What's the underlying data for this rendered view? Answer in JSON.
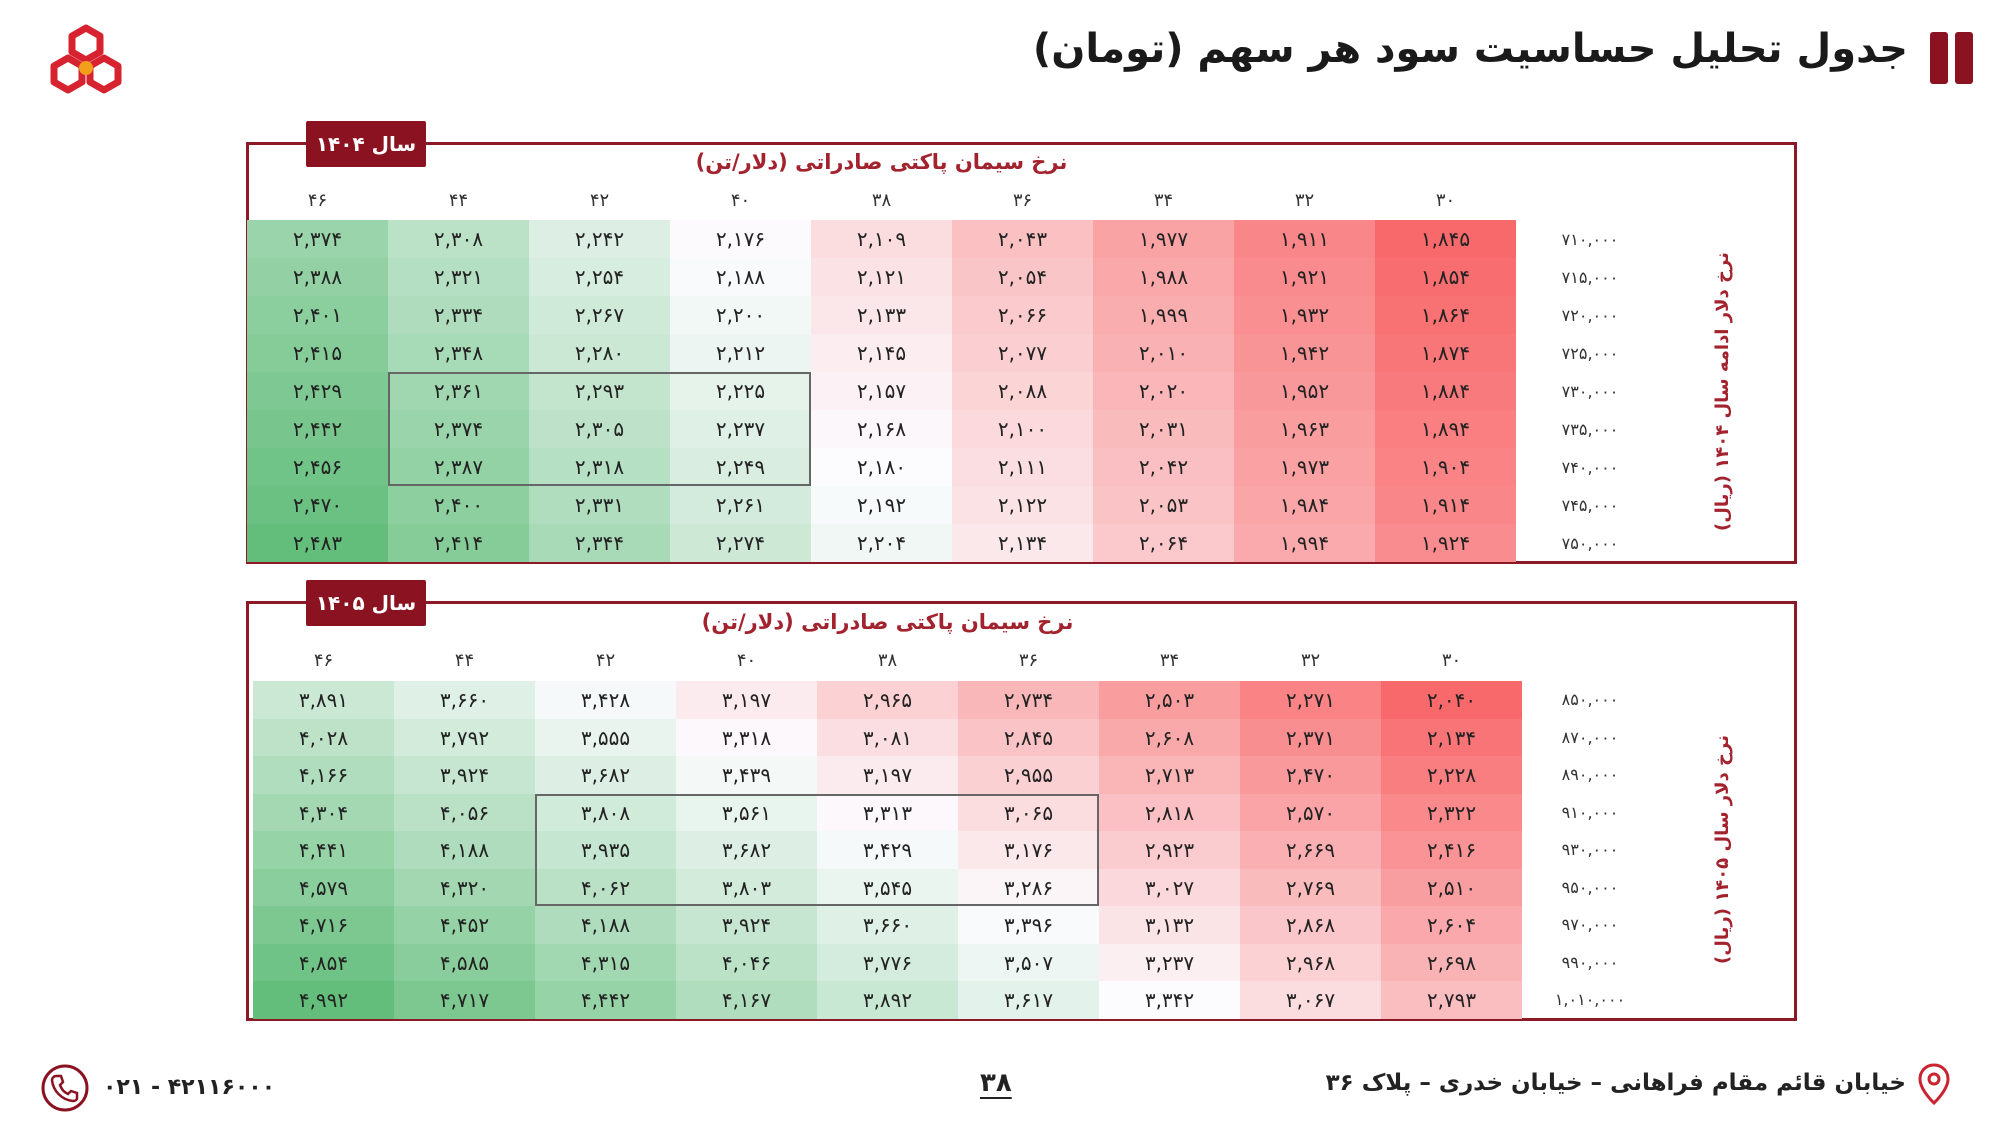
{
  "header": {
    "title": "جدول تحلیل حساسیت سود هر سهم (تومان)"
  },
  "tables": [
    {
      "year_tab": "سال ۱۴۰۴",
      "column_header": "نرخ سیمان پاکتی صادراتی (دلار/تن)",
      "side_label": "نرخ دلار ادامه سال ۱۴۰۴ (ریال)",
      "columns": [
        "۳۰",
        "۳۲",
        "۳۴",
        "۳۶",
        "۳۸",
        "۴۰",
        "۴۲",
        "۴۴",
        "۴۶"
      ],
      "rows": [
        {
          "label": "۷۱۰,۰۰۰",
          "values": [
            "۱,۸۴۵",
            "۱,۹۱۱",
            "۱,۹۷۷",
            "۲,۰۴۳",
            "۲,۱۰۹",
            "۲,۱۷۶",
            "۲,۲۴۲",
            "۲,۳۰۸",
            "۲,۳۷۴"
          ]
        },
        {
          "label": "۷۱۵,۰۰۰",
          "values": [
            "۱,۸۵۴",
            "۱,۹۲۱",
            "۱,۹۸۸",
            "۲,۰۵۴",
            "۲,۱۲۱",
            "۲,۱۸۸",
            "۲,۲۵۴",
            "۲,۳۲۱",
            "۲,۳۸۸"
          ]
        },
        {
          "label": "۷۲۰,۰۰۰",
          "values": [
            "۱,۸۶۴",
            "۱,۹۳۲",
            "۱,۹۹۹",
            "۲,۰۶۶",
            "۲,۱۳۳",
            "۲,۲۰۰",
            "۲,۲۶۷",
            "۲,۳۳۴",
            "۲,۴۰۱"
          ]
        },
        {
          "label": "۷۲۵,۰۰۰",
          "values": [
            "۱,۸۷۴",
            "۱,۹۴۲",
            "۲,۰۱۰",
            "۲,۰۷۷",
            "۲,۱۴۵",
            "۲,۲۱۲",
            "۲,۲۸۰",
            "۲,۳۴۸",
            "۲,۴۱۵"
          ]
        },
        {
          "label": "۷۳۰,۰۰۰",
          "values": [
            "۱,۸۸۴",
            "۱,۹۵۲",
            "۲,۰۲۰",
            "۲,۰۸۸",
            "۲,۱۵۷",
            "۲,۲۲۵",
            "۲,۲۹۳",
            "۲,۳۶۱",
            "۲,۴۲۹"
          ]
        },
        {
          "label": "۷۳۵,۰۰۰",
          "values": [
            "۱,۸۹۴",
            "۱,۹۶۳",
            "۲,۰۳۱",
            "۲,۱۰۰",
            "۲,۱۶۸",
            "۲,۲۳۷",
            "۲,۳۰۵",
            "۲,۳۷۴",
            "۲,۴۴۲"
          ]
        },
        {
          "label": "۷۴۰,۰۰۰",
          "values": [
            "۱,۹۰۴",
            "۱,۹۷۳",
            "۲,۰۴۲",
            "۲,۱۱۱",
            "۲,۱۸۰",
            "۲,۲۴۹",
            "۲,۳۱۸",
            "۲,۳۸۷",
            "۲,۴۵۶"
          ]
        },
        {
          "label": "۷۴۵,۰۰۰",
          "values": [
            "۱,۹۱۴",
            "۱,۹۸۴",
            "۲,۰۵۳",
            "۲,۱۲۲",
            "۲,۱۹۲",
            "۲,۲۶۱",
            "۲,۳۳۱",
            "۲,۴۰۰",
            "۲,۴۷۰"
          ]
        },
        {
          "label": "۷۵۰,۰۰۰",
          "values": [
            "۱,۹۲۴",
            "۱,۹۹۴",
            "۲,۰۶۴",
            "۲,۱۳۴",
            "۲,۲۰۴",
            "۲,۲۷۴",
            "۲,۳۴۴",
            "۲,۴۱۴",
            "۲,۴۸۳"
          ]
        }
      ],
      "highlight": {
        "from_col": 5,
        "to_col": 7,
        "from_row": 4,
        "to_row": 6
      },
      "min_value": 1845,
      "mid_value": 2180,
      "max_value": 2483
    },
    {
      "year_tab": "سال ۱۴۰۵",
      "column_header": "نرخ سیمان پاکتی صادراتی (دلار/تن)",
      "side_label": "نرخ دلار سال ۱۴۰۵ (ریال)",
      "columns": [
        "۳۰",
        "۳۲",
        "۳۴",
        "۳۶",
        "۳۸",
        "۴۰",
        "۴۲",
        "۴۴",
        "۴۶"
      ],
      "rows": [
        {
          "label": "۸۵۰,۰۰۰",
          "values": [
            "۲,۰۴۰",
            "۲,۲۷۱",
            "۲,۵۰۳",
            "۲,۷۳۴",
            "۲,۹۶۵",
            "۳,۱۹۷",
            "۳,۴۲۸",
            "۳,۶۶۰",
            "۳,۸۹۱"
          ]
        },
        {
          "label": "۸۷۰,۰۰۰",
          "values": [
            "۲,۱۳۴",
            "۲,۳۷۱",
            "۲,۶۰۸",
            "۲,۸۴۵",
            "۳,۰۸۱",
            "۳,۳۱۸",
            "۳,۵۵۵",
            "۳,۷۹۲",
            "۴,۰۲۸"
          ]
        },
        {
          "label": "۸۹۰,۰۰۰",
          "values": [
            "۲,۲۲۸",
            "۲,۴۷۰",
            "۲,۷۱۳",
            "۲,۹۵۵",
            "۳,۱۹۷",
            "۳,۴۳۹",
            "۳,۶۸۲",
            "۳,۹۲۴",
            "۴,۱۶۶"
          ]
        },
        {
          "label": "۹۱۰,۰۰۰",
          "values": [
            "۲,۳۲۲",
            "۲,۵۷۰",
            "۲,۸۱۸",
            "۳,۰۶۵",
            "۳,۳۱۳",
            "۳,۵۶۱",
            "۳,۸۰۸",
            "۴,۰۵۶",
            "۴,۳۰۴"
          ]
        },
        {
          "label": "۹۳۰,۰۰۰",
          "values": [
            "۲,۴۱۶",
            "۲,۶۶۹",
            "۲,۹۲۳",
            "۳,۱۷۶",
            "۳,۴۲۹",
            "۳,۶۸۲",
            "۳,۹۳۵",
            "۴,۱۸۸",
            "۴,۴۴۱"
          ]
        },
        {
          "label": "۹۵۰,۰۰۰",
          "values": [
            "۲,۵۱۰",
            "۲,۷۶۹",
            "۳,۰۲۷",
            "۳,۲۸۶",
            "۳,۵۴۵",
            "۳,۸۰۳",
            "۴,۰۶۲",
            "۴,۳۲۰",
            "۴,۵۷۹"
          ]
        },
        {
          "label": "۹۷۰,۰۰۰",
          "values": [
            "۲,۶۰۴",
            "۲,۸۶۸",
            "۳,۱۳۲",
            "۳,۳۹۶",
            "۳,۶۶۰",
            "۳,۹۲۴",
            "۴,۱۸۸",
            "۴,۴۵۲",
            "۴,۷۱۶"
          ]
        },
        {
          "label": "۹۹۰,۰۰۰",
          "values": [
            "۲,۶۹۸",
            "۲,۹۶۸",
            "۳,۲۳۷",
            "۳,۵۰۷",
            "۳,۷۷۶",
            "۴,۰۴۶",
            "۴,۳۱۵",
            "۴,۵۸۵",
            "۴,۸۵۴"
          ]
        },
        {
          "label": "۱,۰۱۰,۰۰۰",
          "values": [
            "۲,۷۹۳",
            "۳,۰۶۷",
            "۳,۳۴۲",
            "۳,۶۱۷",
            "۳,۸۹۲",
            "۴,۱۶۷",
            "۴,۴۴۲",
            "۴,۷۱۷",
            "۴,۹۹۲"
          ]
        }
      ],
      "highlight": {
        "from_col": 3,
        "to_col": 6,
        "from_row": 3,
        "to_row": 5
      },
      "min_value": 2040,
      "mid_value": 3350,
      "max_value": 4992
    }
  ],
  "colors": {
    "brand": "#8b1220",
    "low": "#f8696b",
    "mid": "#fcfcff",
    "high": "#63be7b"
  },
  "footer": {
    "address": "خیابان قائم مقام فراهانی – خیابان خدری – پلاک ۳۶",
    "page_number": "۳۸",
    "phone": "۰۲۱ - ۴۲۱۱۶۰۰۰",
    "address_icon": "location-pin-icon",
    "phone_icon": "phone-icon"
  }
}
